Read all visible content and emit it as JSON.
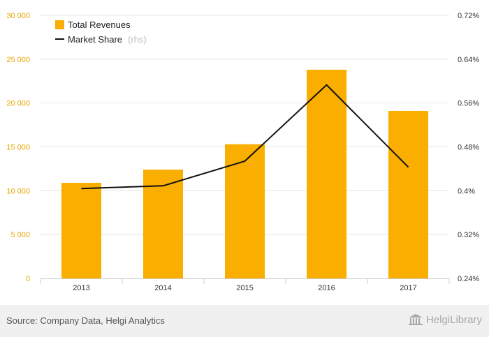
{
  "chart_data": {
    "type": "bar",
    "categories": [
      "2013",
      "2014",
      "2015",
      "2016",
      "2017"
    ],
    "series": [
      {
        "name": "Total Revenues",
        "type": "bar",
        "axis": "left",
        "values": [
          10900,
          12400,
          15300,
          23800,
          19100
        ]
      },
      {
        "name": "Market Share",
        "type": "line",
        "axis": "right",
        "values": [
          0.404,
          0.409,
          0.454,
          0.593,
          0.443
        ]
      }
    ],
    "legend": [
      {
        "label": "Total Revenues",
        "suffix": ""
      },
      {
        "label": "Market Share",
        "suffix": "(rhs)"
      }
    ],
    "legend_position": "top-left",
    "ylim_left": [
      0,
      30000
    ],
    "ylim_right": [
      0.24,
      0.72
    ],
    "yticks_left": [
      0,
      5000,
      10000,
      15000,
      20000,
      25000,
      30000
    ],
    "yticks_left_labels": [
      "0",
      "5 000",
      "10 000",
      "15 000",
      "20 000",
      "25 000",
      "30 000"
    ],
    "yticks_right": [
      0.24,
      0.32,
      0.4,
      0.48,
      0.56,
      0.64,
      0.72
    ],
    "yticks_right_labels": [
      "0.24%",
      "0.32%",
      "0.4%",
      "0.48%",
      "0.56%",
      "0.64%",
      "0.72%"
    ],
    "grid": true,
    "colors": {
      "bar": "#f9ae00",
      "line": "#111111",
      "grid": "#e5e5e5",
      "left_axis_text": "#e8a400"
    }
  },
  "footer": {
    "source": "Source: Company Data, Helgi Analytics",
    "brand": "HelgiLibrary"
  }
}
